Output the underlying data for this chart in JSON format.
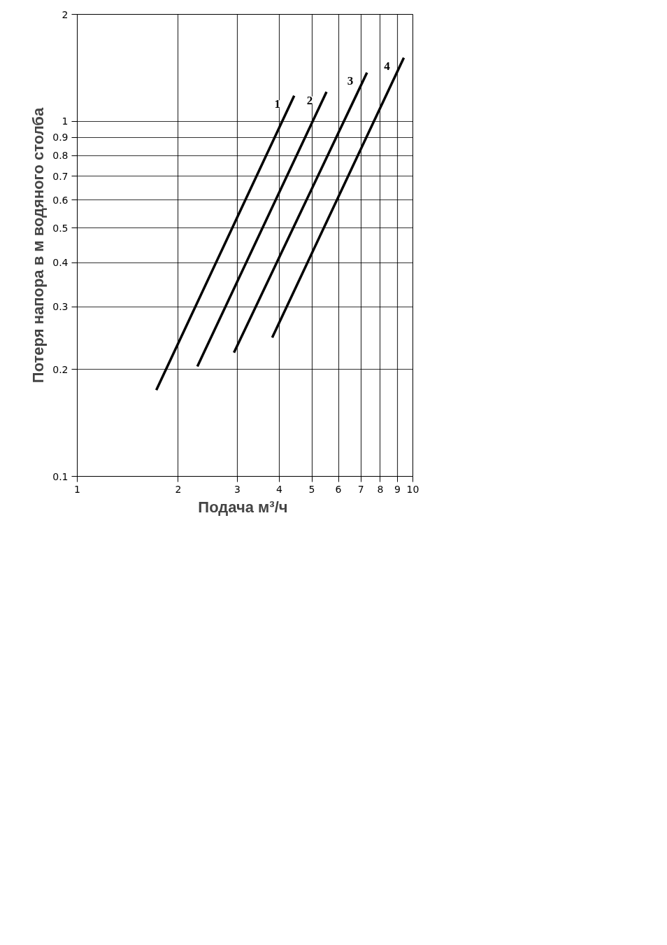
{
  "chart_data": {
    "type": "line",
    "xlabel": "Подача  м³/ч",
    "ylabel": "Потеря напора в м водяного столба",
    "log": "xy",
    "grid": true,
    "xlim": [
      1,
      10
    ],
    "ylim": [
      0.1,
      2
    ],
    "xticks": [
      1,
      2,
      3,
      4,
      5,
      6,
      7,
      8,
      9,
      10
    ],
    "yticks": [
      0.1,
      0.2,
      0.3,
      0.4,
      0.5,
      0.6,
      0.7,
      0.8,
      0.9,
      1,
      2
    ],
    "line_style": "solid",
    "marker": "none",
    "series": [
      {
        "name": "1",
        "color": "#000000",
        "x": [
          1.72,
          4.43
        ],
        "values": [
          0.175,
          1.18
        ]
      },
      {
        "name": "2",
        "color": "#000000",
        "x": [
          2.28,
          5.53
        ],
        "values": [
          0.204,
          1.21
        ]
      },
      {
        "name": "3",
        "color": "#000000",
        "x": [
          2.93,
          7.3
        ],
        "values": [
          0.223,
          1.37
        ]
      },
      {
        "name": "4",
        "color": "#000000",
        "x": [
          3.81,
          9.4
        ],
        "values": [
          0.246,
          1.51
        ]
      }
    ]
  }
}
